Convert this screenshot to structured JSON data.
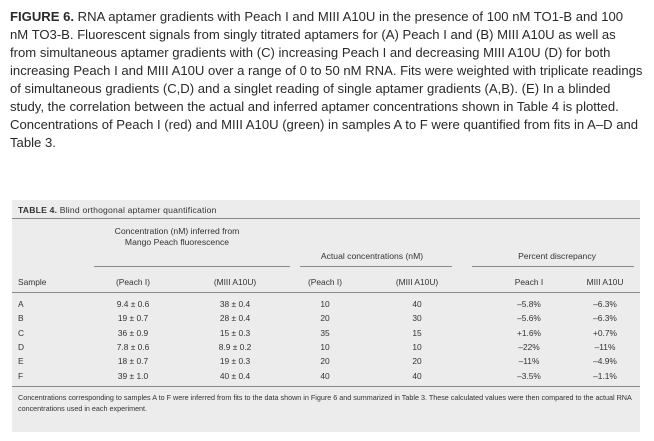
{
  "caption": {
    "label": "FIGURE 6.",
    "text": "RNA aptamer gradients with Peach I and MIII A10U in the presence of 100 nM TO1-B and 100 nM TO3-B. Fluorescent signals from singly titrated aptamers for (A) Peach I and (B) MIII A10U as well as from simultaneous aptamer gradients with (C) increasing Peach I and decreasing MIII A10U (D) for both increasing Peach I and MIII A10U over a range of 0 to 50 nM RNA. Fits were weighted with triplicate readings of simultaneous gradients (C,D) and a singlet reading of single aptamer gradients (A,B). (E) In a blinded study, the correlation between the actual and inferred aptamer concentrations shown in Table 4 is plotted. Concentrations of Peach I (red) and MIII A10U (green) in samples A to F were quantified from fits in A–D and Table 3."
  },
  "table": {
    "label": "TABLE 4.",
    "title": "Blind orthogonal aptamer quantification",
    "group_headers": {
      "inferred": "Concentration (nM) inferred from Mango Peach fluorescence",
      "actual": "Actual concentrations (nM)",
      "discrepancy": "Percent discrepancy"
    },
    "columns": [
      "Sample",
      "(Peach I)",
      "(MIII A10U)",
      "(Peach I)",
      "(MIII A10U)",
      "Peach I",
      "MIII A10U"
    ],
    "rows": [
      [
        "A",
        "9.4 ± 0.6",
        "38 ± 0.4",
        "10",
        "40",
        "–5.8%",
        "–6.3%"
      ],
      [
        "B",
        "19 ± 0.7",
        "28 ± 0.4",
        "20",
        "30",
        "–5.6%",
        "–6.3%"
      ],
      [
        "C",
        "36 ± 0.9",
        "15 ± 0.3",
        "35",
        "15",
        "+1.6%",
        "+0.7%"
      ],
      [
        "D",
        "7.8 ± 0.6",
        "8.9 ± 0.2",
        "10",
        "10",
        "–22%",
        "–11%"
      ],
      [
        "E",
        "18 ± 0.7",
        "19 ± 0.3",
        "20",
        "20",
        "–11%",
        "–4.9%"
      ],
      [
        "F",
        "39 ± 1.0",
        "40 ± 0.4",
        "40",
        "40",
        "–3.5%",
        "–1.1%"
      ]
    ],
    "footnote": "Concentrations corresponding to samples A to F were inferred from fits to the data shown in Figure 6 and summarized in Table 3. These calculated values were then compared to the actual RNA concentrations used in each experiment."
  }
}
